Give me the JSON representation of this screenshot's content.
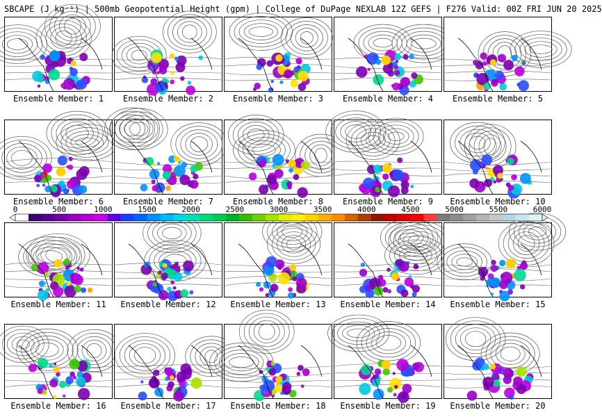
{
  "title": "SBCAPE (J kg⁻¹) | 500mb Geopotential Height (gpm) | College of DuPage NEXLAB 12Z GEFS | F276 Valid: 00Z FRI JUN 20 2025",
  "colorbar": {
    "ticks": [
      "0",
      "500",
      "1000",
      "1500",
      "2000",
      "2500",
      "3000",
      "3500",
      "4000",
      "4500",
      "5000",
      "5500",
      "6000"
    ],
    "colors": [
      "#ffffff",
      "#3a0070",
      "#5a0090",
      "#7a00a8",
      "#9a00c0",
      "#b300d6",
      "#c800e6",
      "#5a00e0",
      "#1e3cff",
      "#0064ff",
      "#0090ff",
      "#00b8ff",
      "#00d8e8",
      "#00e0b0",
      "#00d880",
      "#00c850",
      "#00b028",
      "#30c000",
      "#70d000",
      "#a8e000",
      "#e0f000",
      "#fff000",
      "#ffd200",
      "#ffb000",
      "#ff8c00",
      "#d26400",
      "#b03c00",
      "#901800",
      "#c00000",
      "#e00000",
      "#ff0000",
      "#ff3c3c",
      "#7a7a7a",
      "#8c8c8c",
      "#a0a0a0",
      "#b4b4b4",
      "#c8c8c8",
      "#b0d8e8",
      "#c8e8f0",
      "#e0f4f8"
    ]
  },
  "panels": [
    {
      "caption": "Ensemble Member: 1"
    },
    {
      "caption": "Ensemble Member: 2"
    },
    {
      "caption": "Ensemble Member: 3"
    },
    {
      "caption": "Ensemble Member: 4"
    },
    {
      "caption": "Ensemble Member: 5"
    },
    {
      "caption": "Ensemble Member: 6"
    },
    {
      "caption": "Ensemble Member: 7"
    },
    {
      "caption": "Ensemble Member: 8"
    },
    {
      "caption": "Ensemble Member: 9"
    },
    {
      "caption": "Ensemble Member: 10"
    },
    {
      "caption": "Ensemble Member: 11"
    },
    {
      "caption": "Ensemble Member: 12"
    },
    {
      "caption": "Ensemble Member: 13"
    },
    {
      "caption": "Ensemble Member: 14"
    },
    {
      "caption": "Ensemble Member: 15"
    },
    {
      "caption": "Ensemble Member: 16"
    },
    {
      "caption": "Ensemble Member: 17"
    },
    {
      "caption": "Ensemble Member: 18"
    },
    {
      "caption": "Ensemble Member: 19"
    },
    {
      "caption": "Ensemble Member: 20"
    }
  ]
}
